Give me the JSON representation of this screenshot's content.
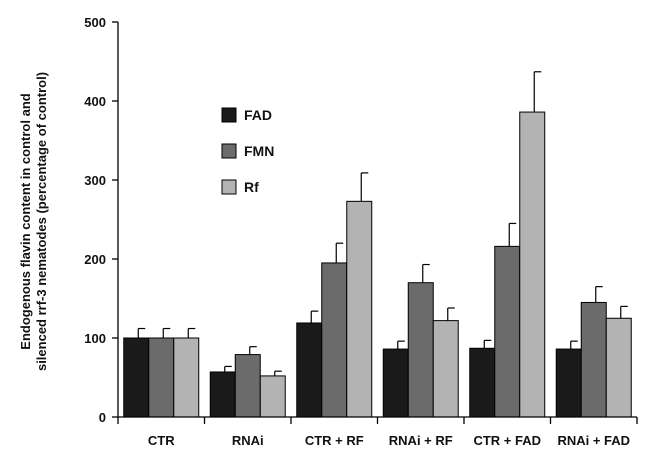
{
  "chart_data": {
    "type": "bar",
    "title": "",
    "xlabel": "",
    "ylabel_lines": [
      "Endogenous flavin content in control and",
      "silenced rrf-3 nematodes (percentage of control)"
    ],
    "ylim": [
      0,
      500
    ],
    "yticks": [
      "0",
      "100",
      "200",
      "300",
      "400",
      "500"
    ],
    "categories": [
      "CTR",
      "RNAi",
      "CTR + RF",
      "RNAi + RF",
      "CTR + FAD",
      "RNAi + FAD"
    ],
    "legend_position": "upper-left",
    "grid": false,
    "series": [
      {
        "name": "FAD",
        "color": "#1a1a1a",
        "values": [
          100,
          57,
          119,
          86,
          87,
          86
        ],
        "errors": [
          12,
          7,
          15,
          10,
          10,
          10
        ]
      },
      {
        "name": "FMN",
        "color": "#6b6b6b",
        "values": [
          100,
          79,
          195,
          170,
          216,
          145
        ],
        "errors": [
          12,
          10,
          25,
          23,
          29,
          20
        ]
      },
      {
        "name": "Rf",
        "color": "#b3b3b3",
        "values": [
          100,
          52,
          273,
          122,
          386,
          125
        ],
        "errors": [
          12,
          6,
          36,
          16,
          51,
          15
        ]
      }
    ]
  }
}
